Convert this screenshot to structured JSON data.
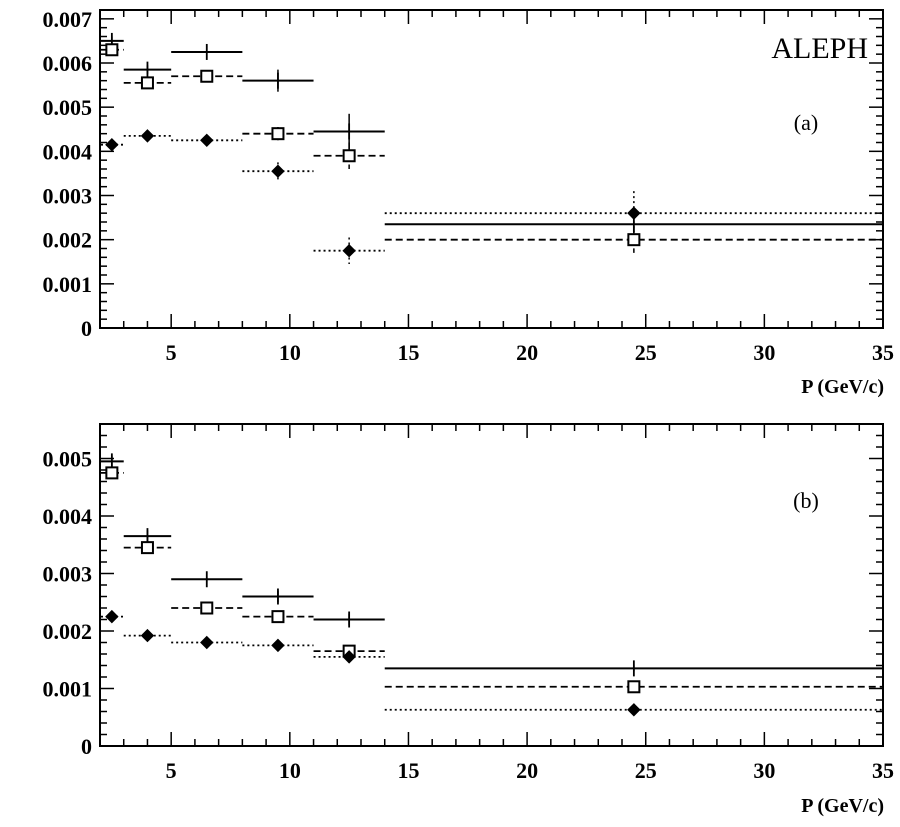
{
  "figure": {
    "experiment": "ALEPH",
    "colors": {
      "ink": "#000000",
      "background": "#ffffff"
    }
  },
  "chart_data": [
    {
      "type": "scatter",
      "panel_label": "(a)",
      "xlabel": "P (GeV/c)",
      "ylabel": "",
      "xlim": [
        2,
        35
      ],
      "ylim": [
        0,
        0.0072
      ],
      "xticks": [
        5,
        10,
        15,
        20,
        25,
        30,
        35
      ],
      "yticks": [
        0,
        0.001,
        0.002,
        0.003,
        0.004,
        0.005,
        0.006,
        0.007
      ],
      "ytick_labels": [
        "0",
        "0.001",
        "0.002",
        "0.003",
        "0.004",
        "0.005",
        "0.006",
        "0.007"
      ],
      "grid": false,
      "legend": "none",
      "series": [
        {
          "marker": "plus",
          "line": "solid",
          "points": [
            {
              "x": 2.5,
              "xlo": 2,
              "xhi": 3,
              "y": 0.0065,
              "err": 0.0001
            },
            {
              "x": 4,
              "xlo": 3,
              "xhi": 5,
              "y": 0.00585,
              "err": 0.0001
            },
            {
              "x": 6.5,
              "xlo": 5,
              "xhi": 8,
              "y": 0.00625,
              "err": 0.00015
            },
            {
              "x": 9.5,
              "xlo": 8,
              "xhi": 11,
              "y": 0.0056,
              "err": 0.00025
            },
            {
              "x": 12.5,
              "xlo": 11,
              "xhi": 14,
              "y": 0.00445,
              "err": 0.0004
            },
            {
              "x": 24.5,
              "xlo": 14,
              "xhi": 35,
              "y": 0.00235,
              "err": 0.0
            }
          ]
        },
        {
          "marker": "open-square",
          "line": "dashed",
          "points": [
            {
              "x": 2.5,
              "xlo": 2,
              "xhi": 3,
              "y": 0.0063,
              "err": 0.0001
            },
            {
              "x": 4,
              "xlo": 3,
              "xhi": 5,
              "y": 0.00555,
              "err": 5e-05
            },
            {
              "x": 6.5,
              "xlo": 5,
              "xhi": 8,
              "y": 0.0057,
              "err": 5e-05
            },
            {
              "x": 9.5,
              "xlo": 8,
              "xhi": 11,
              "y": 0.0044,
              "err": 0.00015
            },
            {
              "x": 12.5,
              "xlo": 11,
              "xhi": 14,
              "y": 0.0039,
              "err": 0.0003
            },
            {
              "x": 24.5,
              "xlo": 14,
              "xhi": 35,
              "y": 0.002,
              "err": 0.0003
            }
          ]
        },
        {
          "marker": "filled-diamond",
          "line": "dotted",
          "points": [
            {
              "x": 2.5,
              "xlo": 2,
              "xhi": 3,
              "y": 0.00415,
              "err": 0.0
            },
            {
              "x": 4,
              "xlo": 3,
              "xhi": 5,
              "y": 0.00435,
              "err": 5e-05
            },
            {
              "x": 6.5,
              "xlo": 5,
              "xhi": 8,
              "y": 0.00425,
              "err": 0.0001
            },
            {
              "x": 9.5,
              "xlo": 8,
              "xhi": 11,
              "y": 0.00355,
              "err": 0.0002
            },
            {
              "x": 12.5,
              "xlo": 11,
              "xhi": 14,
              "y": 0.00175,
              "err": 0.0003
            },
            {
              "x": 24.5,
              "xlo": 14,
              "xhi": 35,
              "y": 0.0026,
              "err": 0.0005
            }
          ]
        }
      ]
    },
    {
      "type": "scatter",
      "panel_label": "(b)",
      "xlabel": "P (GeV/c)",
      "ylabel": "",
      "xlim": [
        2,
        35
      ],
      "ylim": [
        0,
        0.0056
      ],
      "xticks": [
        5,
        10,
        15,
        20,
        25,
        30,
        35
      ],
      "yticks": [
        0,
        0.001,
        0.002,
        0.003,
        0.004,
        0.005
      ],
      "ytick_labels": [
        "0",
        "0.001",
        "0.002",
        "0.003",
        "0.004",
        "0.005"
      ],
      "grid": false,
      "legend": "none",
      "series": [
        {
          "marker": "plus",
          "line": "solid",
          "points": [
            {
              "x": 2.5,
              "xlo": 2,
              "xhi": 3,
              "y": 0.00495,
              "err": 0.0001
            },
            {
              "x": 4,
              "xlo": 3,
              "xhi": 5,
              "y": 0.00365,
              "err": 0.0001
            },
            {
              "x": 6.5,
              "xlo": 5,
              "xhi": 8,
              "y": 0.0029,
              "err": 5e-05
            },
            {
              "x": 9.5,
              "xlo": 8,
              "xhi": 11,
              "y": 0.0026,
              "err": 0.0001
            },
            {
              "x": 12.5,
              "xlo": 11,
              "xhi": 14,
              "y": 0.0022,
              "err": 0.0001
            },
            {
              "x": 24.5,
              "xlo": 14,
              "xhi": 35,
              "y": 0.00135,
              "err": 5e-05
            }
          ]
        },
        {
          "marker": "open-square",
          "line": "dashed",
          "points": [
            {
              "x": 2.5,
              "xlo": 2,
              "xhi": 3,
              "y": 0.00475,
              "err": 0.0001
            },
            {
              "x": 4,
              "xlo": 3,
              "xhi": 5,
              "y": 0.00345,
              "err": 5e-05
            },
            {
              "x": 6.5,
              "xlo": 5,
              "xhi": 8,
              "y": 0.0024,
              "err": 5e-05
            },
            {
              "x": 9.5,
              "xlo": 8,
              "xhi": 11,
              "y": 0.00225,
              "err": 5e-05
            },
            {
              "x": 12.5,
              "xlo": 11,
              "xhi": 14,
              "y": 0.00165,
              "err": 5e-05
            },
            {
              "x": 24.5,
              "xlo": 14,
              "xhi": 35,
              "y": 0.00103,
              "err": 5e-05
            }
          ]
        },
        {
          "marker": "filled-diamond",
          "line": "dotted",
          "points": [
            {
              "x": 2.5,
              "xlo": 2,
              "xhi": 3,
              "y": 0.00225,
              "err": 0.0
            },
            {
              "x": 4,
              "xlo": 3,
              "xhi": 5,
              "y": 0.00192,
              "err": 0.0
            },
            {
              "x": 6.5,
              "xlo": 5,
              "xhi": 8,
              "y": 0.0018,
              "err": 0.0
            },
            {
              "x": 9.5,
              "xlo": 8,
              "xhi": 11,
              "y": 0.00175,
              "err": 0.0
            },
            {
              "x": 12.5,
              "xlo": 11,
              "xhi": 14,
              "y": 0.00155,
              "err": 0.0001
            },
            {
              "x": 24.5,
              "xlo": 14,
              "xhi": 35,
              "y": 0.00063,
              "err": 0.0
            }
          ]
        }
      ]
    }
  ]
}
